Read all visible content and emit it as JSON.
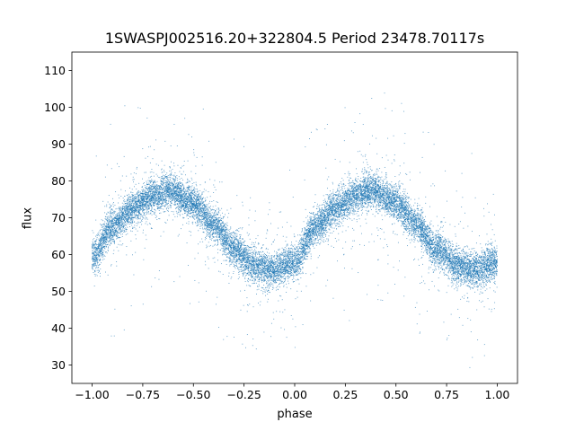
{
  "chart_data": {
    "type": "scatter",
    "title": "1SWASPJ002516.20+322804.5 Period 23478.70117s",
    "xlabel": "phase",
    "ylabel": "flux",
    "xlim": [
      -1.1,
      1.1
    ],
    "ylim": [
      25,
      115
    ],
    "xticks": [
      -1.0,
      -0.75,
      -0.5,
      -0.25,
      0.0,
      0.25,
      0.5,
      0.75,
      1.0
    ],
    "xtick_labels": [
      "−1.00",
      "−0.75",
      "−0.50",
      "−0.25",
      "0.00",
      "0.25",
      "0.50",
      "0.75",
      "1.00"
    ],
    "yticks": [
      30,
      40,
      50,
      60,
      70,
      80,
      90,
      100,
      110
    ],
    "ytick_labels": [
      "30",
      "40",
      "50",
      "60",
      "70",
      "80",
      "90",
      "100",
      "110"
    ],
    "grid": false,
    "legend": "none",
    "marker_color": "#1f77b4",
    "phase_range": [
      -1.0,
      1.0
    ],
    "curve": {
      "phase": [
        -1.0,
        -0.9,
        -0.8,
        -0.7,
        -0.62,
        -0.5,
        -0.4,
        -0.3,
        -0.2,
        -0.1,
        0.0,
        0.1,
        0.2,
        0.3,
        0.38,
        0.5,
        0.6,
        0.7,
        0.8,
        0.9,
        1.0
      ],
      "flux": [
        59.5,
        67.5,
        72.5,
        76.0,
        77.5,
        74.0,
        68.0,
        61.5,
        57.0,
        55.8,
        58.0,
        67.5,
        72.5,
        76.0,
        77.5,
        74.0,
        68.0,
        61.5,
        57.0,
        55.8,
        58.0
      ]
    },
    "scatter_sigma": 2.3,
    "n_points": 16000
  }
}
